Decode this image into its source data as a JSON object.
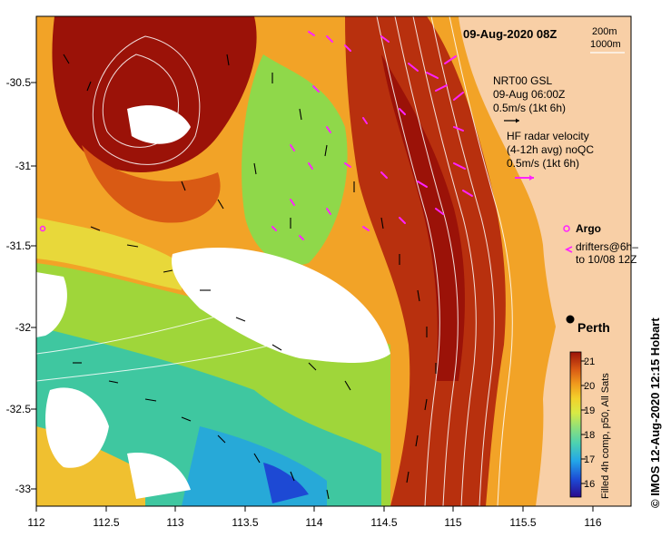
{
  "map": {
    "title": "09-Aug-2020 08Z",
    "depth_contours": [
      "200m",
      "1000m"
    ],
    "place_label": "Perth",
    "x_ticks": [
      "112",
      "112.5",
      "113",
      "113.5",
      "114",
      "114.5",
      "115",
      "115.5",
      "116"
    ],
    "y_ticks": [
      "-30.5",
      "-31",
      "-31.5",
      "-32",
      "-32.5",
      "-33"
    ],
    "credit": "© IMOS 12-Aug-2020 12:15 Hobart"
  },
  "legend": {
    "gsl_line1": "NRT00 GSL",
    "gsl_line2": "09-Aug 06:00Z",
    "gsl_scale": "0.5m/s (1kt 6h)",
    "hf_line1": "HF radar velocity",
    "hf_line2": "(4-12h avg) noQC",
    "hf_scale": "0.5m/s (1kt 6h)",
    "argo": "Argo",
    "drifters_line1": "drifters@6h–",
    "drifters_line2": "to 10/08 12Z"
  },
  "colorbar": {
    "title": "Filled 4h comp, p50, All Sats",
    "ticks": [
      "21",
      "20",
      "19",
      "18",
      "17",
      "16"
    ],
    "colors": [
      "#2a0a8c",
      "#1d49d4",
      "#23a7e8",
      "#4cd1b1",
      "#8fe07a",
      "#d8ea45",
      "#f2d12b",
      "#f09a1d",
      "#d95a14",
      "#9b1208"
    ]
  },
  "colors": {
    "land": "#f8cfa6",
    "hf_vectors": "#ff22ff",
    "warm_core": "#9b1208"
  }
}
